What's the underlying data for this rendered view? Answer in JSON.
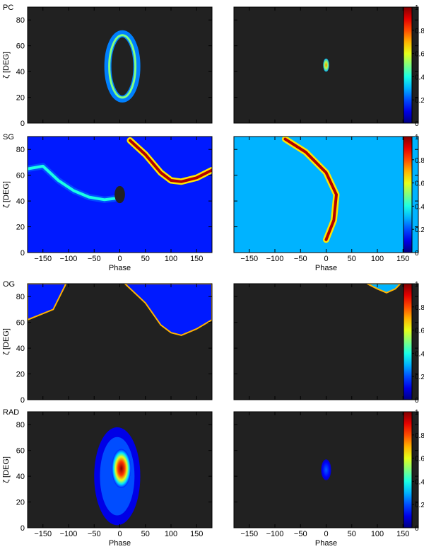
{
  "chart_data": [
    {
      "type": "heatmap",
      "row_label": "PC",
      "column": "left",
      "ylabel": "ζ [DEG]",
      "xlabel": "",
      "xlim": [
        -180,
        180
      ],
      "ylim": [
        0,
        90
      ],
      "yticks": [
        0,
        20,
        40,
        60,
        80
      ],
      "xticks": [],
      "features": [
        {
          "kind": "ring",
          "center_x": 5,
          "center_y": 44,
          "rx": 20,
          "ry": 22,
          "thickness": 7,
          "intensity": 0.25
        }
      ]
    },
    {
      "type": "heatmap",
      "row_label": "",
      "column": "right",
      "xlim": [
        -180,
        180
      ],
      "ylim": [
        0,
        90
      ],
      "features": [
        {
          "kind": "spot",
          "center_x": 0,
          "center_y": 45,
          "rx": 3,
          "ry": 4,
          "intensity": 0.6
        }
      ],
      "colorbar": {
        "min": 0,
        "max": 1,
        "ticks": [
          0,
          0.2,
          0.4,
          0.6,
          0.8,
          1
        ]
      }
    },
    {
      "type": "heatmap",
      "row_label": "SG",
      "column": "left",
      "ylabel": "ζ [DEG]",
      "xlabel": "Phase",
      "xlim": [
        -180,
        180
      ],
      "ylim": [
        0,
        90
      ],
      "yticks": [
        0,
        20,
        40,
        60,
        80
      ],
      "xticks": [
        -150,
        -100,
        -50,
        0,
        50,
        100,
        150
      ],
      "features": [
        {
          "kind": "caustic",
          "points": [
            [
              -180,
              65
            ],
            [
              -150,
              67
            ],
            [
              -120,
              56
            ],
            [
              -90,
              48
            ],
            [
              -60,
              43
            ],
            [
              -30,
              41
            ],
            [
              -10,
              42
            ]
          ],
          "intensity": 0.4
        },
        {
          "kind": "caustic",
          "points": [
            [
              20,
              87
            ],
            [
              50,
              76
            ],
            [
              80,
              62
            ],
            [
              100,
              56
            ],
            [
              120,
              55
            ],
            [
              150,
              58
            ],
            [
              180,
              64
            ]
          ],
          "intensity": 0.95
        },
        {
          "kind": "dark_spot",
          "center_x": 0,
          "center_y": 45,
          "rx": 6,
          "ry": 5
        }
      ],
      "background_intensity": 0.15
    },
    {
      "type": "heatmap",
      "row_label": "",
      "column": "right",
      "xlabel": "Phase",
      "xlim": [
        -180,
        180
      ],
      "ylim": [
        0,
        90
      ],
      "xticks": [
        -150,
        -100,
        -50,
        0,
        50,
        100,
        150
      ],
      "features": [
        {
          "kind": "caustic",
          "points": [
            [
              -80,
              88
            ],
            [
              -40,
              78
            ],
            [
              0,
              62
            ],
            [
              20,
              45
            ],
            [
              15,
              25
            ],
            [
              0,
              10
            ]
          ],
          "intensity": 0.95
        }
      ],
      "background_intensity": 0.3,
      "colorbar": {
        "min": 0,
        "max": 1,
        "ticks": [
          0,
          0.2,
          0.4,
          0.6,
          0.8,
          1
        ]
      }
    },
    {
      "type": "heatmap",
      "row_label": "OG",
      "column": "left",
      "ylabel": "ζ [DEG]",
      "xlabel": "",
      "xlim": [
        -180,
        180
      ],
      "ylim": [
        0,
        90
      ],
      "yticks": [
        0,
        20,
        40,
        60,
        80
      ],
      "xticks": [],
      "features": [
        {
          "kind": "region",
          "polygon": [
            [
              -180,
              90
            ],
            [
              -180,
              62
            ],
            [
              -130,
              70
            ],
            [
              -105,
              90
            ]
          ],
          "intensity": 0.15
        },
        {
          "kind": "region",
          "polygon": [
            [
              10,
              90
            ],
            [
              50,
              75
            ],
            [
              80,
              58
            ],
            [
              100,
              52
            ],
            [
              120,
              50
            ],
            [
              150,
              55
            ],
            [
              180,
              62
            ],
            [
              180,
              90
            ]
          ],
          "intensity": 0.15
        }
      ]
    },
    {
      "type": "heatmap",
      "row_label": "",
      "column": "right",
      "xlim": [
        -180,
        180
      ],
      "ylim": [
        0,
        90
      ],
      "features": [
        {
          "kind": "region",
          "polygon": [
            [
              80,
              90
            ],
            [
              100,
              86
            ],
            [
              118,
              83
            ],
            [
              135,
              86
            ],
            [
              145,
              90
            ]
          ],
          "intensity": 0.3
        }
      ],
      "colorbar": {
        "min": 0,
        "max": 1,
        "ticks": [
          0,
          0.2,
          0.4,
          0.6,
          0.8,
          1
        ]
      }
    },
    {
      "type": "heatmap",
      "row_label": "RAD",
      "column": "left",
      "ylabel": "ζ [DEG]",
      "xlabel": "Phase",
      "xlim": [
        -180,
        180
      ],
      "ylim": [
        0,
        90
      ],
      "yticks": [
        0,
        20,
        40,
        60,
        80
      ],
      "xticks": [
        -150,
        -100,
        -50,
        0,
        50,
        100,
        150
      ],
      "features": [
        {
          "kind": "blob",
          "center_x": -5,
          "center_y": 40,
          "rx": 45,
          "ry": 38,
          "intensity": 0.1
        },
        {
          "kind": "spot",
          "center_x": 3,
          "center_y": 46,
          "rx": 16,
          "ry": 14,
          "intensity": 0.9
        }
      ]
    },
    {
      "type": "heatmap",
      "row_label": "",
      "column": "right",
      "xlabel": "Phase",
      "xlim": [
        -180,
        180
      ],
      "ylim": [
        0,
        90
      ],
      "xticks": [
        -150,
        -100,
        -50,
        0,
        50,
        100,
        150
      ],
      "features": [
        {
          "kind": "spot",
          "center_x": 0,
          "center_y": 45,
          "rx": 7,
          "ry": 7,
          "intensity": 0.1
        }
      ],
      "colorbar": {
        "min": 0,
        "max": 1,
        "ticks": [
          0,
          0.2,
          0.4,
          0.6,
          0.8,
          1
        ]
      }
    }
  ]
}
